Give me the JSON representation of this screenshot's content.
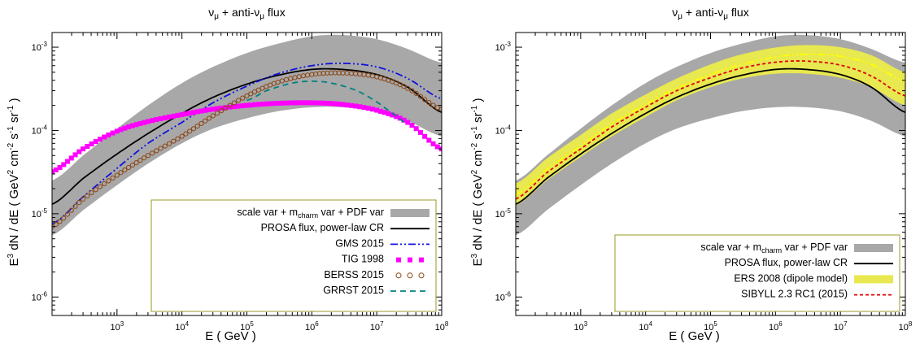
{
  "chart_data": [
    {
      "type": "line",
      "title": "νμ + anti-νμ  flux",
      "title_parts": {
        "nu": "ν",
        "mu": "μ",
        "plus": " + anti-",
        "flux": "  flux"
      },
      "xlabel": "E    ( GeV )",
      "ylabel": "E³ dN / dE    ( GeV² cm⁻² s⁻¹ sr⁻¹ )",
      "ylabel_parts": {
        "lead": "E",
        "exp3": "3",
        "mid": " dN / dE   ( GeV",
        "exp2": "2",
        "cm": " cm",
        "expm2": "-2",
        "s": " s",
        "expm1": "-1",
        "sr": " sr",
        "expm1b": "-1",
        "tail": " )"
      },
      "xscale": "log",
      "yscale": "log",
      "xlim": [
        100,
        100000000
      ],
      "ylim": [
        6e-07,
        0.0015
      ],
      "xticks": [
        {
          "value": 1000,
          "base": "10",
          "exp": "3"
        },
        {
          "value": 10000,
          "base": "10",
          "exp": "4"
        },
        {
          "value": 100000,
          "base": "10",
          "exp": "5"
        },
        {
          "value": 1000000,
          "base": "10",
          "exp": "6"
        },
        {
          "value": 10000000,
          "base": "10",
          "exp": "7"
        },
        {
          "value": 100000000,
          "base": "10",
          "exp": "8"
        }
      ],
      "yticks": [
        {
          "value": 1e-06,
          "base": "10",
          "exp": "-6"
        },
        {
          "value": 1e-05,
          "base": "10",
          "exp": "-5"
        },
        {
          "value": 0.0001,
          "base": "10",
          "exp": "-4"
        },
        {
          "value": 0.001,
          "base": "10",
          "exp": "-3"
        }
      ],
      "legend_position": "bottom-right",
      "band": {
        "name": "scale var + mcharm var + PDF var",
        "name_parts": {
          "a": "scale var + m",
          "sub": "charm",
          "b": " var + PDF var"
        },
        "color": "#a8a8a8",
        "x": [
          100,
          300,
          1000,
          3000,
          10000,
          30000,
          100000,
          300000,
          1000000,
          3000000,
          10000000,
          30000000,
          100000000
        ],
        "low": [
          5.5e-06,
          1.1e-05,
          2.2e-05,
          4e-05,
          7e-05,
          0.000105,
          0.00014,
          0.00017,
          0.00019,
          0.00019,
          0.00017,
          0.00013,
          8.5e-05
        ],
        "high": [
          2.5e-05,
          5e-05,
          0.000105,
          0.0002,
          0.00037,
          0.00058,
          0.00085,
          0.0011,
          0.00135,
          0.0014,
          0.00125,
          0.00095,
          0.00065
        ]
      },
      "series": [
        {
          "name": "PROSA flux, power-law CR",
          "color": "#000000",
          "style": "solid",
          "x": [
            100,
            300,
            1000,
            3000,
            10000,
            30000,
            100000,
            300000,
            1000000,
            3000000,
            10000000,
            30000000,
            100000000
          ],
          "y": [
            1.3e-05,
            2.65e-05,
            5.2e-05,
            9.2e-05,
            0.00016,
            0.00025,
            0.00036,
            0.00046,
            0.00054,
            0.00054,
            0.00047,
            0.00033,
            0.000165
          ]
        },
        {
          "name": "GMS 2015",
          "color": "#1010e0",
          "style": "dashdot",
          "x": [
            100,
            300,
            1000,
            3000,
            10000,
            30000,
            100000,
            300000,
            1000000,
            3000000,
            10000000,
            30000000,
            100000000
          ],
          "y": [
            7.5e-06,
            1.6e-05,
            3.5e-05,
            7e-05,
            0.000125,
            0.000215,
            0.00034,
            0.00048,
            0.0006,
            0.00064,
            0.00058,
            0.00042,
            0.00024
          ]
        },
        {
          "name": "TIG 1998",
          "color": "#ff00ff",
          "style": "squares",
          "x": [
            100,
            300,
            1000,
            3000,
            10000,
            30000,
            100000,
            300000,
            1000000,
            3000000,
            10000000,
            30000000,
            100000000
          ],
          "y": [
            3.2e-05,
            6e-05,
            9.8e-05,
            0.000128,
            0.000155,
            0.00018,
            0.0002,
            0.000212,
            0.000215,
            0.000205,
            0.000175,
            0.000125,
            6e-05
          ]
        },
        {
          "name": "BERSS 2015",
          "color": "#8b4513",
          "style": "circles",
          "x": [
            100,
            300,
            1000,
            3000,
            10000,
            30000,
            100000,
            300000,
            1000000,
            3000000,
            10000000,
            30000000,
            100000000
          ],
          "y": [
            7e-06,
            1.5e-05,
            2.9e-05,
            5e-05,
            8.5e-05,
            0.00015,
            0.00026,
            0.00038,
            0.00047,
            0.00049,
            0.00044,
            0.00032,
            0.00018
          ]
        },
        {
          "name": "GRRST 2015",
          "color": "#008080",
          "style": "dashed",
          "x": [
            100000,
            200000,
            500000,
            1000000,
            2000000,
            5000000,
            10000000,
            20000000,
            30000000
          ],
          "y": [
            0.00023,
            0.0003,
            0.00037,
            0.00039,
            0.00037,
            0.0003,
            0.00022,
            0.00015,
            0.00012
          ]
        }
      ]
    },
    {
      "type": "line",
      "title": "νμ + anti-νμ  flux",
      "title_parts": {
        "nu": "ν",
        "mu": "μ",
        "plus": " + anti-",
        "flux": "  flux"
      },
      "xlabel": "E    ( GeV )",
      "ylabel": "E³ dN / dE    ( GeV² cm⁻² s⁻¹ sr⁻¹ )",
      "ylabel_parts": {
        "lead": "E",
        "exp3": "3",
        "mid": " dN / dE   ( GeV",
        "exp2": "2",
        "cm": " cm",
        "expm2": "-2",
        "s": " s",
        "expm1": "-1",
        "sr": " sr",
        "expm1b": "-1",
        "tail": " )"
      },
      "xscale": "log",
      "yscale": "log",
      "xlim": [
        100,
        100000000
      ],
      "ylim": [
        6e-07,
        0.0015
      ],
      "xticks": [
        {
          "value": 1000,
          "base": "10",
          "exp": "3"
        },
        {
          "value": 10000,
          "base": "10",
          "exp": "4"
        },
        {
          "value": 100000,
          "base": "10",
          "exp": "5"
        },
        {
          "value": 1000000,
          "base": "10",
          "exp": "6"
        },
        {
          "value": 10000000,
          "base": "10",
          "exp": "7"
        },
        {
          "value": 100000000,
          "base": "10",
          "exp": "8"
        }
      ],
      "yticks": [
        {
          "value": 1e-06,
          "base": "10",
          "exp": "-6"
        },
        {
          "value": 1e-05,
          "base": "10",
          "exp": "-5"
        },
        {
          "value": 0.0001,
          "base": "10",
          "exp": "-4"
        },
        {
          "value": 0.001,
          "base": "10",
          "exp": "-3"
        }
      ],
      "legend_position": "bottom-right",
      "bands": [
        {
          "name": "scale var + mcharm var + PDF var",
          "name_parts": {
            "a": "scale var + m",
            "sub": "charm",
            "b": " var + PDF var"
          },
          "color": "#a8a8a8",
          "x": [
            100,
            300,
            1000,
            3000,
            10000,
            30000,
            100000,
            300000,
            1000000,
            3000000,
            10000000,
            30000000,
            100000000
          ],
          "low": [
            5.5e-06,
            1.1e-05,
            2.2e-05,
            4e-05,
            7e-05,
            0.000105,
            0.00014,
            0.00017,
            0.00019,
            0.00019,
            0.00017,
            0.00013,
            8.5e-05
          ],
          "high": [
            2.5e-05,
            5e-05,
            0.000105,
            0.0002,
            0.00037,
            0.00058,
            0.00085,
            0.0011,
            0.00135,
            0.0014,
            0.00125,
            0.00095,
            0.00065
          ]
        },
        {
          "name": "ERS 2008 (dipole model)",
          "color": "#e8e850",
          "x": [
            100,
            300,
            1000,
            3000,
            10000,
            30000,
            100000,
            300000,
            1000000,
            3000000,
            10000000,
            30000000,
            100000000
          ],
          "low": [
            1.25e-05,
            2.5e-05,
            4.8e-05,
            8.5e-05,
            0.000145,
            0.00023,
            0.00033,
            0.00042,
            0.00048,
            0.00048,
            0.00043,
            0.00033,
            0.0002
          ],
          "high": [
            2.3e-05,
            4.6e-05,
            8.8e-05,
            0.00016,
            0.00027,
            0.00042,
            0.00062,
            0.00082,
            0.00099,
            0.00106,
            0.001,
            0.0008,
            0.0005
          ]
        }
      ],
      "series": [
        {
          "name": "PROSA flux, power-law CR",
          "color": "#000000",
          "style": "solid",
          "x": [
            100,
            300,
            1000,
            3000,
            10000,
            30000,
            100000,
            300000,
            1000000,
            3000000,
            10000000,
            30000000,
            100000000
          ],
          "y": [
            1.3e-05,
            2.65e-05,
            5.2e-05,
            9.2e-05,
            0.00016,
            0.00025,
            0.00036,
            0.00046,
            0.00054,
            0.00054,
            0.00047,
            0.00033,
            0.000165
          ]
        },
        {
          "name": "ERS 2008 central",
          "color": "#ffff00",
          "style": "dashdot",
          "legend": false,
          "x": [
            100,
            300,
            1000,
            3000,
            10000,
            30000,
            100000,
            300000,
            1000000,
            3000000,
            10000000,
            30000000,
            100000000
          ],
          "y": [
            1.7e-05,
            3.4e-05,
            6.5e-05,
            0.00012,
            0.000205,
            0.00032,
            0.00047,
            0.00062,
            0.00076,
            0.00082,
            0.00078,
            0.00062,
            0.00039
          ]
        },
        {
          "name": "SIBYLL 2.3 RC1 (2015)",
          "color": "#e00000",
          "style": "dotted",
          "x": [
            100,
            300,
            1000,
            3000,
            10000,
            30000,
            100000,
            300000,
            1000000,
            3000000,
            10000000,
            30000000,
            100000000
          ],
          "y": [
            1.5e-05,
            3.1e-05,
            6e-05,
            0.00011,
            0.00019,
            0.0003,
            0.00043,
            0.00056,
            0.00066,
            0.00068,
            0.00061,
            0.00045,
            0.00026
          ]
        }
      ],
      "legend_order": [
        "band:0",
        "series:0",
        "band:1",
        "series:2"
      ]
    }
  ]
}
